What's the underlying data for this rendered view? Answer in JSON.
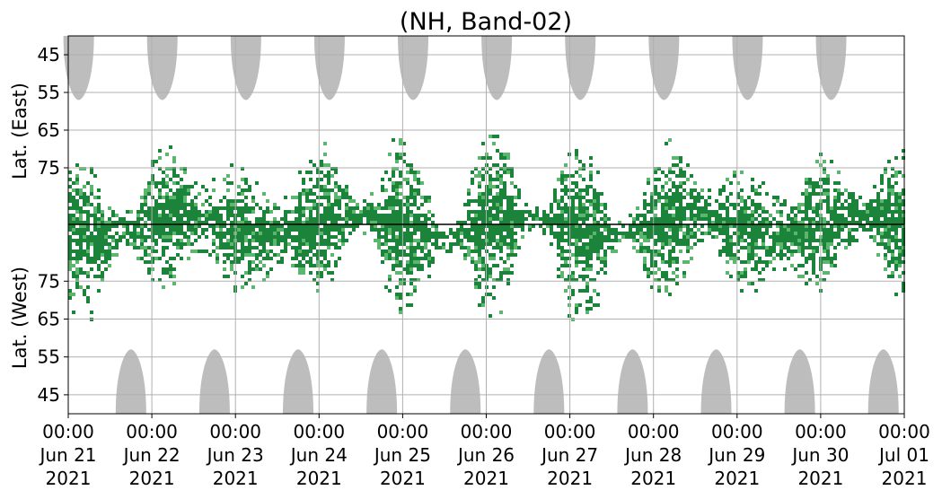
{
  "chart_data": {
    "type": "heatmap",
    "title": "(NH, Band-02)",
    "y_upper_label": "Lat. (East)",
    "y_lower_label": "Lat. (West)",
    "y_upper_ticks": [
      "45",
      "55",
      "65",
      "75"
    ],
    "y_lower_ticks": [
      "75",
      "65",
      "55",
      "45"
    ],
    "x_ticks": [
      {
        "time": "00:00",
        "date": "Jun 21",
        "year": "2021"
      },
      {
        "time": "00:00",
        "date": "Jun 22",
        "year": "2021"
      },
      {
        "time": "00:00",
        "date": "Jun 23",
        "year": "2021"
      },
      {
        "time": "00:00",
        "date": "Jun 24",
        "year": "2021"
      },
      {
        "time": "00:00",
        "date": "Jun 25",
        "year": "2021"
      },
      {
        "time": "00:00",
        "date": "Jun 26",
        "year": "2021"
      },
      {
        "time": "00:00",
        "date": "Jun 27",
        "year": "2021"
      },
      {
        "time": "00:00",
        "date": "Jun 28",
        "year": "2021"
      },
      {
        "time": "00:00",
        "date": "Jun 29",
        "year": "2021"
      },
      {
        "time": "00:00",
        "date": "Jun 30",
        "year": "2021"
      },
      {
        "time": "00:00",
        "date": "Jul 01",
        "year": "2021"
      }
    ],
    "x_range": [
      "2021-06-21 00:00",
      "2021-07-01 00:00"
    ],
    "y_upper_range": [
      40,
      90
    ],
    "y_lower_range": [
      90,
      40
    ],
    "grid": true,
    "colors": {
      "strong": "#1b833a",
      "weak": "#5cb66e",
      "no_data": "#bdbdbd",
      "divider": "#000000"
    },
    "upper_gray_peaks": [
      "2021-06-21 03:00",
      "2021-06-22 03:00",
      "2021-06-23 03:00",
      "2021-06-24 03:00",
      "2021-06-25 03:00",
      "2021-06-26 03:00",
      "2021-06-27 03:00",
      "2021-06-28 03:00",
      "2021-06-29 03:00",
      "2021-06-30 03:00"
    ],
    "lower_gray_peaks": [
      "2021-06-21 18:00",
      "2021-06-22 18:00",
      "2021-06-23 18:00",
      "2021-06-24 18:00",
      "2021-06-25 18:00",
      "2021-06-26 18:00",
      "2021-06-27 18:00",
      "2021-06-28 18:00",
      "2021-06-29 18:00",
      "2021-06-30 18:00"
    ],
    "gray_reach_lat": 57
  }
}
